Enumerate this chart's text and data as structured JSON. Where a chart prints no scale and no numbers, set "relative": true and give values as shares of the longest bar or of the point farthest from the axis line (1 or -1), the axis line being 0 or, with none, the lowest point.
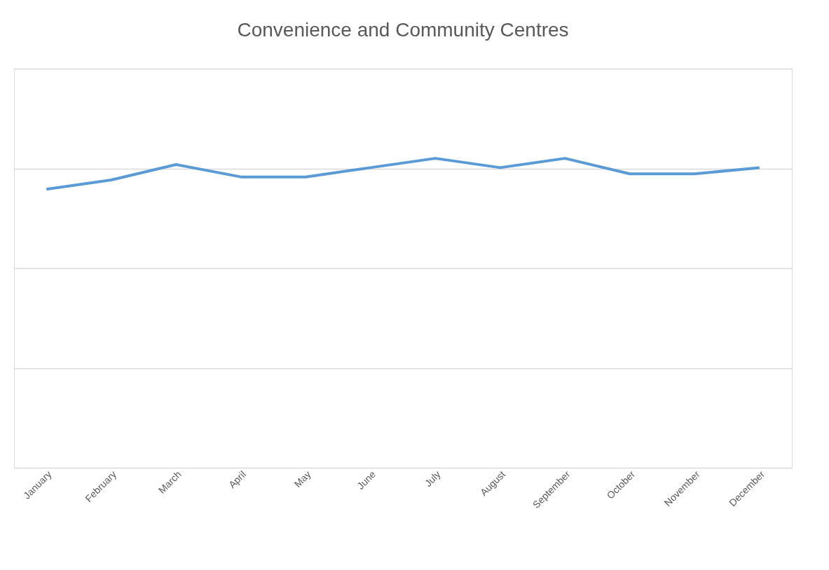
{
  "chart_data": {
    "type": "line",
    "title": "Convenience and Community Centres",
    "relative": true,
    "grid": "y",
    "categories": [
      "January",
      "February",
      "March",
      "April",
      "May",
      "June",
      "July",
      "August",
      "September",
      "October",
      "November",
      "December"
    ],
    "series": [
      {
        "color": "#5b9bd5",
        "values": [
          0.9,
          0.93,
          0.98,
          0.94,
          0.94,
          0.97,
          1.0,
          0.97,
          1.0,
          0.95,
          0.95,
          0.97
        ]
      }
    ],
    "marker": "none",
    "line_style": "solid",
    "legend": false
  }
}
